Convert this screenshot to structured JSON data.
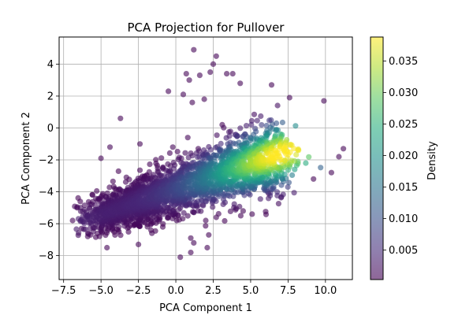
{
  "chart_data": {
    "type": "scatter",
    "title": "PCA Projection for Pullover",
    "xlabel": "PCA Component 1",
    "ylabel": "PCA Component 2",
    "xlim": [
      -7.8,
      11.8
    ],
    "ylim": [
      -9.5,
      5.7
    ],
    "xticks": [
      -7.5,
      -5.0,
      -2.5,
      0.0,
      2.5,
      5.0,
      7.5,
      10.0
    ],
    "xtick_labels": [
      "−7.5",
      "−5.0",
      "−2.5",
      "0.0",
      "2.5",
      "5.0",
      "7.5",
      "10.0"
    ],
    "yticks": [
      -8,
      -6,
      -4,
      -2,
      0,
      2,
      4
    ],
    "ytick_labels": [
      "−8",
      "−6",
      "−4",
      "−2",
      "0",
      "2",
      "4"
    ],
    "grid": true,
    "colorbar": {
      "label": "Density",
      "range": [
        0.0003,
        0.0388
      ],
      "ticks": [
        0.005,
        0.01,
        0.015,
        0.02,
        0.025,
        0.03,
        0.035
      ],
      "tick_labels": [
        "0.005",
        "0.010",
        "0.015",
        "0.020",
        "0.025",
        "0.030",
        "0.035"
      ],
      "colormap": "viridis",
      "alpha": 0.6
    },
    "distribution": {
      "main_axis_from": [
        -5.5,
        -5.6
      ],
      "main_axis_to": [
        7.0,
        -1.6
      ],
      "density_peak": [
        6.8,
        -1.7
      ],
      "approx_points": 2400
    },
    "outliers": [
      [
        1.2,
        4.9
      ],
      [
        2.5,
        4.0
      ],
      [
        2.7,
        4.5
      ],
      [
        2.3,
        3.5
      ],
      [
        0.7,
        3.4
      ],
      [
        0.9,
        3.0
      ],
      [
        1.6,
        3.3
      ],
      [
        3.4,
        3.4
      ],
      [
        3.8,
        3.4
      ],
      [
        4.3,
        2.8
      ],
      [
        6.4,
        2.7
      ],
      [
        7.6,
        1.9
      ],
      [
        9.9,
        1.7
      ],
      [
        -0.5,
        2.3
      ],
      [
        0.5,
        2.1
      ],
      [
        1.1,
        1.6
      ],
      [
        1.9,
        1.8
      ],
      [
        -3.7,
        0.6
      ],
      [
        -4.4,
        -1.2
      ],
      [
        -2.4,
        -1.0
      ],
      [
        -5.0,
        -1.9
      ],
      [
        -6.6,
        -5.0
      ],
      [
        -6.9,
        -5.8
      ],
      [
        -6.3,
        -6.3
      ],
      [
        -5.7,
        -6.7
      ],
      [
        -4.6,
        -7.5
      ],
      [
        -3.8,
        -6.5
      ],
      [
        -1.6,
        -6.6
      ],
      [
        -2.5,
        -7.3
      ],
      [
        1.0,
        -7.8
      ],
      [
        0.3,
        -8.1
      ],
      [
        1.0,
        -6.9
      ],
      [
        2.2,
        -6.7
      ],
      [
        2.1,
        -7.5
      ],
      [
        1.2,
        -7.2
      ],
      [
        2.0,
        -5.8
      ],
      [
        2.7,
        -5.6
      ],
      [
        4.5,
        -5.2
      ],
      [
        5.1,
        -5.4
      ],
      [
        6.2,
        -4.1
      ],
      [
        9.2,
        -3.2
      ],
      [
        10.4,
        -2.8
      ],
      [
        11.2,
        -1.3
      ],
      [
        10.9,
        -1.8
      ],
      [
        0.8,
        -0.6
      ],
      [
        -0.2,
        -1.2
      ],
      [
        1.5,
        -1.3
      ],
      [
        3.1,
        0.2
      ]
    ]
  }
}
